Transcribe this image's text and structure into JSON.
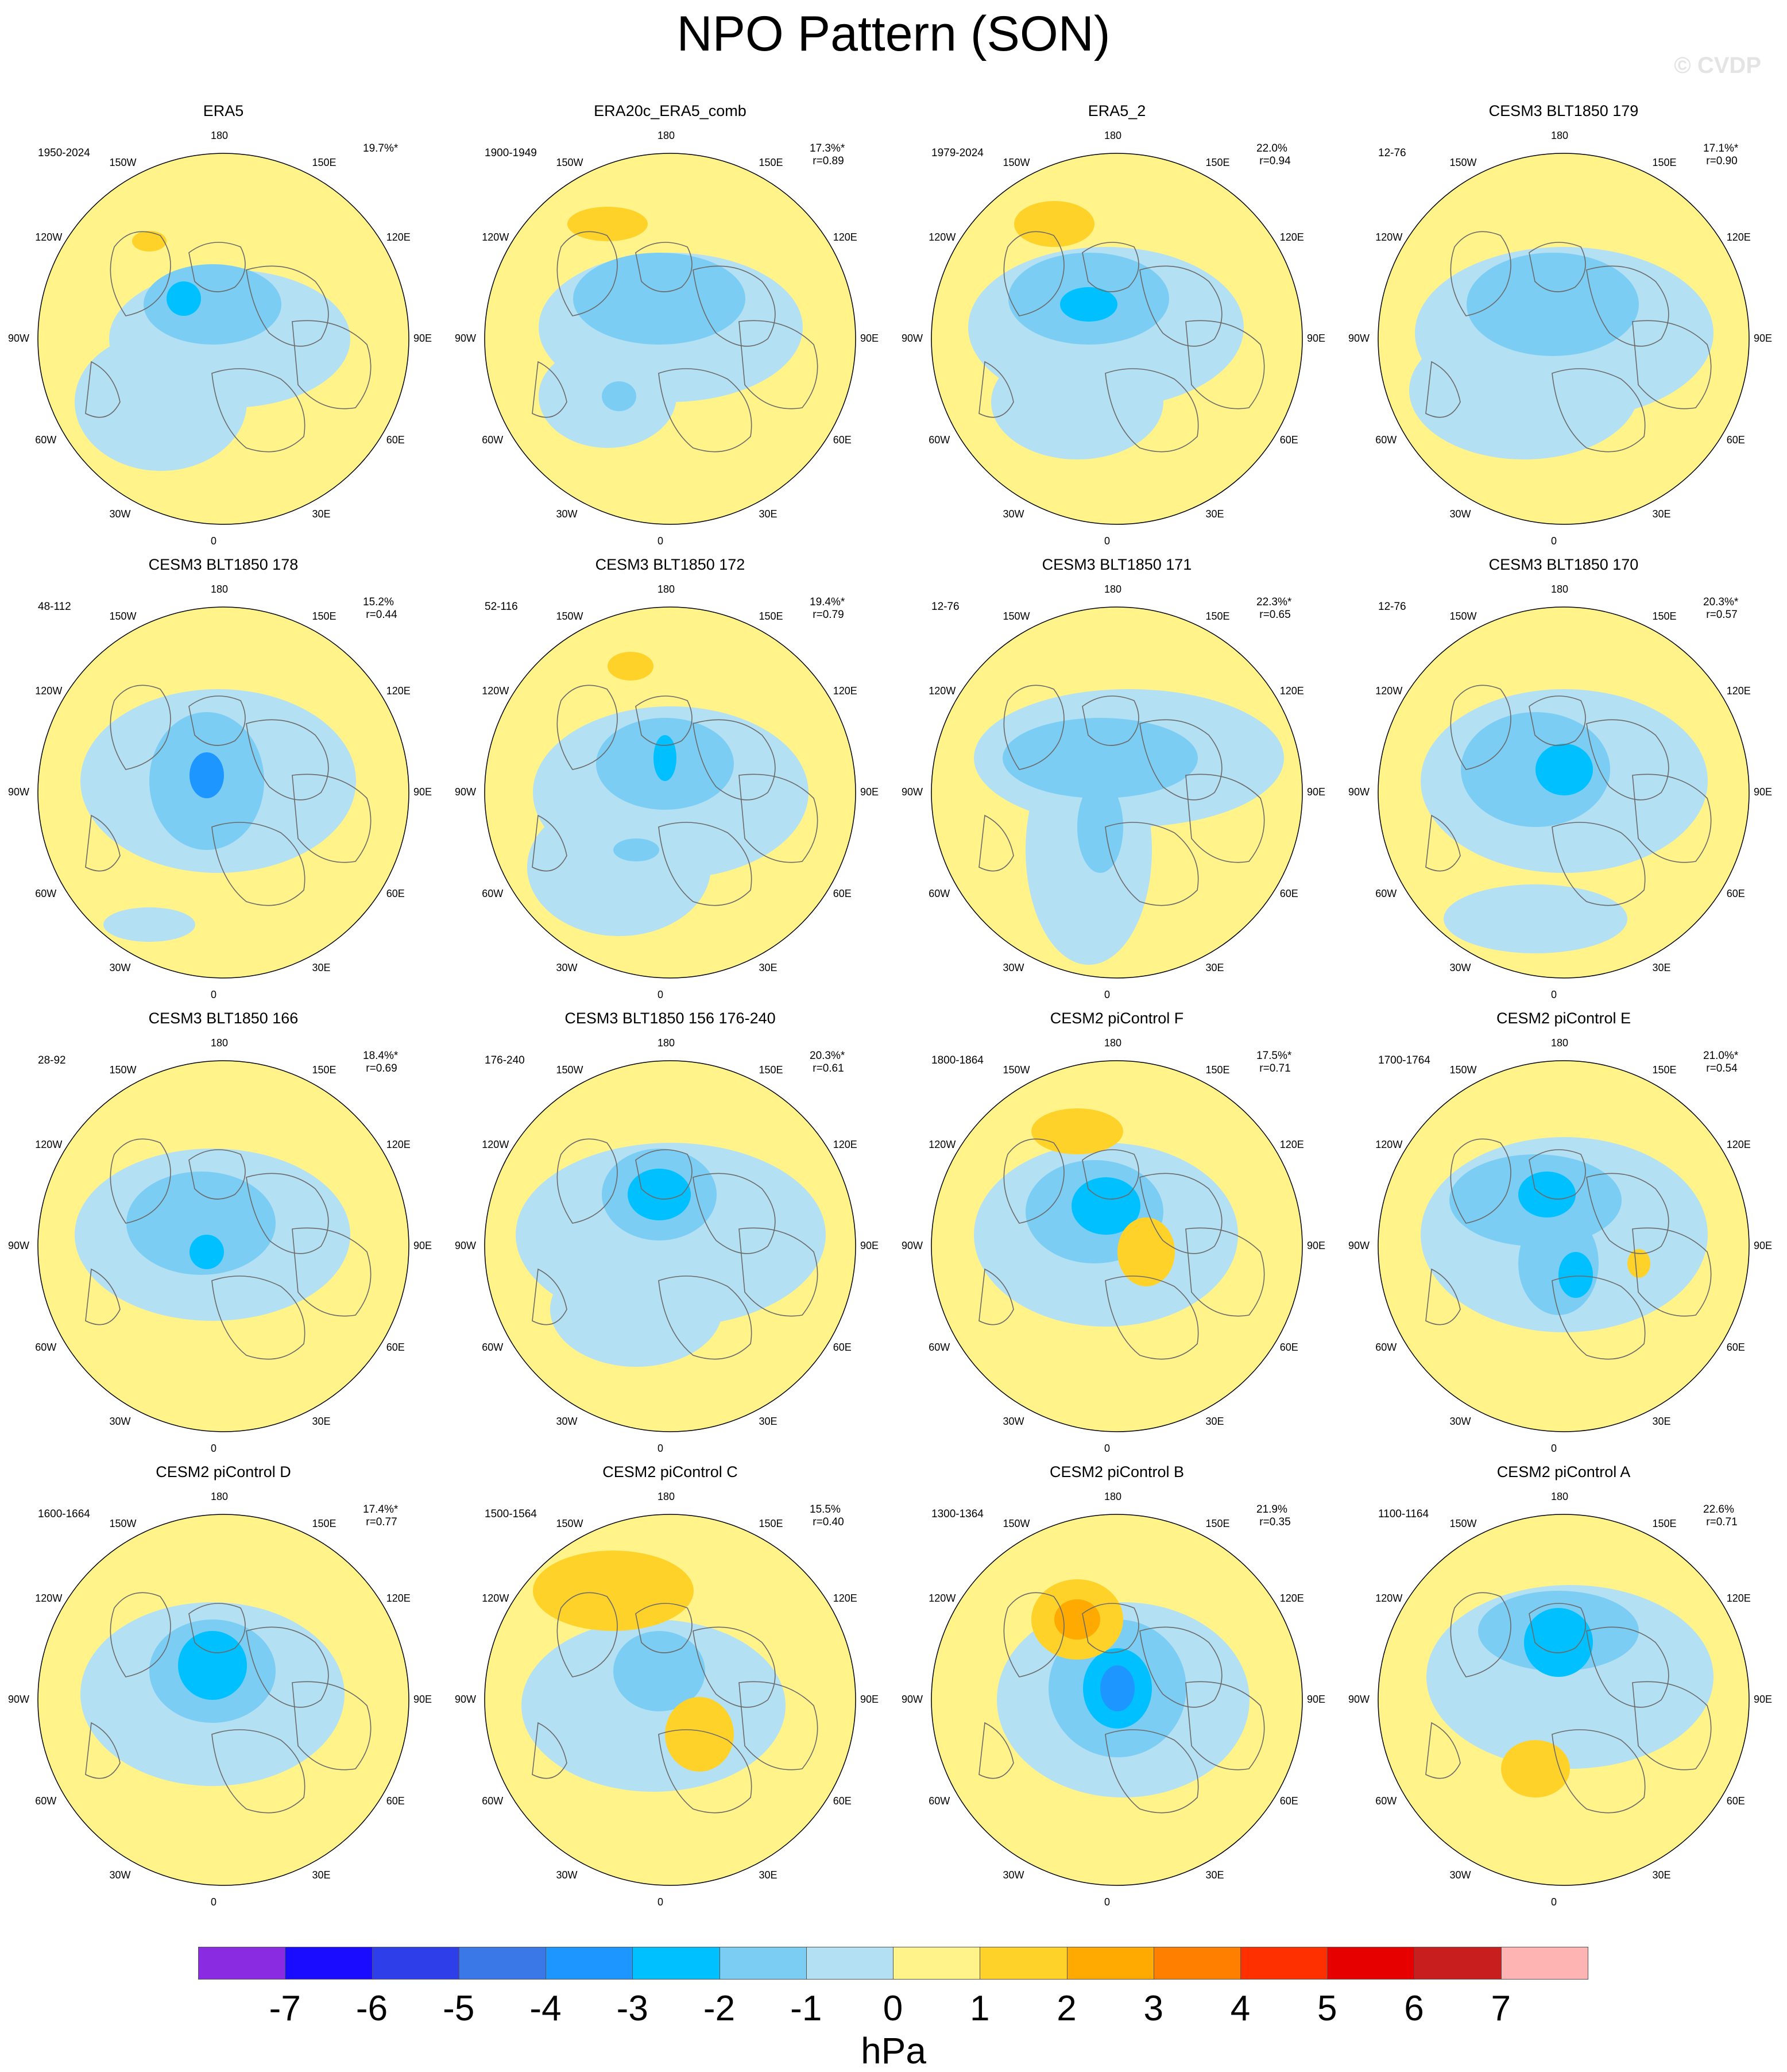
{
  "figure": {
    "title": "NPO Pattern (SON)",
    "watermark": "© CVDP"
  },
  "longitude_labels": [
    "180",
    "150E",
    "120E",
    "90E",
    "60E",
    "30E",
    "0",
    "30W",
    "60W",
    "90W",
    "120W",
    "150W"
  ],
  "panels": [
    {
      "title": "ERA5",
      "period": "1950-2024",
      "variance": "19.7%*",
      "corr": ""
    },
    {
      "title": "ERA20c_ERA5_comb",
      "period": "1900-1949",
      "variance": "17.3%*",
      "corr": "r=0.89"
    },
    {
      "title": "ERA5_2",
      "period": "1979-2024",
      "variance": "22.0%",
      "corr": "r=0.94"
    },
    {
      "title": "CESM3 BLT1850 179",
      "period": "12-76",
      "variance": "17.1%*",
      "corr": "r=0.90"
    },
    {
      "title": "CESM3 BLT1850 178",
      "period": "48-112",
      "variance": "15.2%",
      "corr": "r=0.44"
    },
    {
      "title": "CESM3 BLT1850 172",
      "period": "52-116",
      "variance": "19.4%*",
      "corr": "r=0.79"
    },
    {
      "title": "CESM3 BLT1850 171",
      "period": "12-76",
      "variance": "22.3%*",
      "corr": "r=0.65"
    },
    {
      "title": "CESM3 BLT1850 170",
      "period": "12-76",
      "variance": "20.3%*",
      "corr": "r=0.57"
    },
    {
      "title": "CESM3 BLT1850 166",
      "period": "28-92",
      "variance": "18.4%*",
      "corr": "r=0.69"
    },
    {
      "title": "CESM3 BLT1850 156 176-240",
      "period": "176-240",
      "variance": "20.3%*",
      "corr": "r=0.61"
    },
    {
      "title": "CESM2 piControl F",
      "period": "1800-1864",
      "variance": "17.5%*",
      "corr": "r=0.71"
    },
    {
      "title": "CESM2 piControl E",
      "period": "1700-1764",
      "variance": "21.0%*",
      "corr": "r=0.54"
    },
    {
      "title": "CESM2 piControl D",
      "period": "1600-1664",
      "variance": "17.4%*",
      "corr": "r=0.77"
    },
    {
      "title": "CESM2 piControl C",
      "period": "1500-1564",
      "variance": "15.5%",
      "corr": "r=0.40"
    },
    {
      "title": "CESM2 piControl B",
      "period": "1300-1364",
      "variance": "21.9%",
      "corr": "r=0.35"
    },
    {
      "title": "CESM2 piControl A",
      "period": "1100-1164",
      "variance": "22.6%",
      "corr": "r=0.71"
    }
  ],
  "colorbar": {
    "unit": "hPa",
    "ticks": [
      "-7",
      "-6",
      "-5",
      "-4",
      "-3",
      "-2",
      "-1",
      "0",
      "1",
      "2",
      "3",
      "4",
      "5",
      "6",
      "7"
    ],
    "colors": [
      "#8a2be2",
      "#1a0dff",
      "#2e3ee8",
      "#3a78e8",
      "#1e96ff",
      "#00c0ff",
      "#7ccdf4",
      "#b4e0f4",
      "#fff38a",
      "#ffd22a",
      "#ffaa00",
      "#ff8000",
      "#ff3000",
      "#e60000",
      "#c81e1e",
      "#ffb4b4"
    ]
  },
  "style": {
    "negative_fill": "#b4e0f4",
    "positive_fill": "#fff38a",
    "coastline": "#6a6a6a"
  }
}
